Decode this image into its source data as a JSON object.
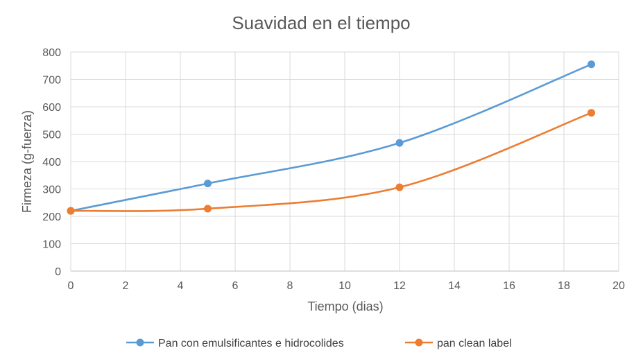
{
  "chart_data": {
    "type": "line",
    "title": "Suavidad en el tiempo",
    "xlabel": "Tiempo (dias)",
    "ylabel": "Firmeza (g-fuerza)",
    "xlim": [
      0,
      20
    ],
    "ylim": [
      0,
      800
    ],
    "xticks": [
      0,
      2,
      4,
      6,
      8,
      10,
      12,
      14,
      16,
      18,
      20
    ],
    "yticks": [
      0,
      100,
      200,
      300,
      400,
      500,
      600,
      700,
      800
    ],
    "grid": true,
    "smoothed": true,
    "legend_position": "bottom",
    "series": [
      {
        "name": "Pan con emulsificantes e hidrocolides",
        "color": "#5b9bd5",
        "x": [
          0,
          5,
          12,
          19
        ],
        "y": [
          220,
          320,
          468,
          755
        ]
      },
      {
        "name": "pan clean label",
        "color": "#ed7d31",
        "x": [
          0,
          5,
          12,
          19
        ],
        "y": [
          220,
          228,
          306,
          578
        ]
      }
    ]
  }
}
